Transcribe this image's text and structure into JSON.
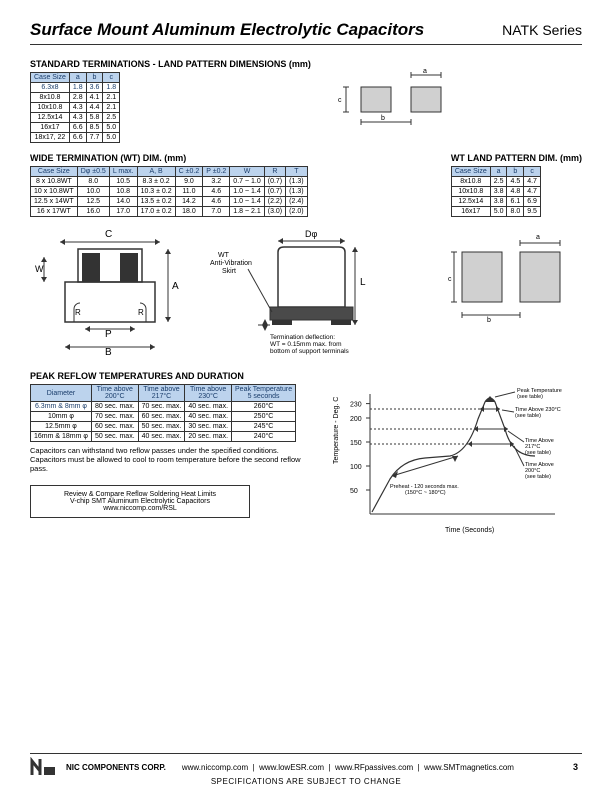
{
  "header": {
    "title": "Surface Mount Aluminum Electrolytic Capacitors",
    "series": "NATK Series"
  },
  "std_term": {
    "heading": "STANDARD TERMINATIONS - LAND PATTERN DIMENSIONS (mm)",
    "cols": [
      "Case Size",
      "a",
      "b",
      "c"
    ],
    "rows": [
      [
        "6.3x8",
        "1.8",
        "3.6",
        "1.8"
      ],
      [
        "8x10.8",
        "2.8",
        "4.1",
        "2.1"
      ],
      [
        "10x10.8",
        "4.3",
        "4.4",
        "2.1"
      ],
      [
        "12.5x14",
        "4.3",
        "5.8",
        "2.5"
      ],
      [
        "16x17",
        "6.6",
        "8.5",
        "5.0"
      ],
      [
        "18x17, 22",
        "6.6",
        "7.7",
        "5.0"
      ]
    ]
  },
  "wt_dim": {
    "heading": "WIDE TERMINATION (WT) DIM. (mm)",
    "cols": [
      "Case Size",
      "Dφ ±0.5",
      "L max.",
      "A, B",
      "C ±0.2",
      "P ±0.2",
      "W",
      "R",
      "T"
    ],
    "rows": [
      [
        "8 x 10.8WT",
        "8.0",
        "10.5",
        "8.3 ± 0.2",
        "9.0",
        "3.2",
        "0.7 ~ 1.0",
        "(0.7)",
        "(1.3)"
      ],
      [
        "10 x 10.8WT",
        "10.0",
        "10.8",
        "10.3 ± 0.2",
        "11.0",
        "4.6",
        "1.0 ~ 1.4",
        "(0.7)",
        "(1.3)"
      ],
      [
        "12.5 x 14WT",
        "12.5",
        "14.0",
        "13.5 ± 0.2",
        "14.2",
        "4.6",
        "1.0 ~ 1.4",
        "(2.2)",
        "(2.4)"
      ],
      [
        "16 x 17WT",
        "16.0",
        "17.0",
        "17.0 ± 0.2",
        "18.0",
        "7.0",
        "1.8 ~ 2.1",
        "(3.0)",
        "(2.0)"
      ]
    ]
  },
  "wt_land": {
    "heading": "WT LAND PATTERN DIM. (mm)",
    "cols": [
      "Case Size",
      "a",
      "b",
      "c"
    ],
    "rows": [
      [
        "8x10.8",
        "2.5",
        "4.5",
        "4.7"
      ],
      [
        "10x10.8",
        "3.8",
        "4.8",
        "4.7"
      ],
      [
        "12.5x14",
        "3.8",
        "6.1",
        "6.9"
      ],
      [
        "16x17",
        "5.0",
        "8.0",
        "9.5"
      ]
    ]
  },
  "mech_labels": {
    "wt_skirt": "WT\nAnti-Vibration\nSkirt",
    "term_defl": "Termination deflection:\nWT = 0.15mm max. from\nbottom of support terminals"
  },
  "reflow": {
    "heading": "PEAK REFLOW TEMPERATURES AND DURATION",
    "cols": [
      "Diameter",
      "Time above\n200°C",
      "Time above\n217°C",
      "Time above\n230°C",
      "Peak Temperature\n5 seconds"
    ],
    "rows": [
      [
        "6.3mm & 8mm φ",
        "80 sec. max.",
        "70 sec. max.",
        "40 sec. max.",
        "260°C"
      ],
      [
        "10mm φ",
        "70 sec. max.",
        "60 sec. max.",
        "40 sec. max.",
        "250°C"
      ],
      [
        "12.5mm φ",
        "60 sec. max.",
        "50 sec. max.",
        "30 sec. max.",
        "245°C"
      ],
      [
        "16mm & 18mm φ",
        "50 sec. max.",
        "40 sec. max.",
        "20 sec. max.",
        "240°C"
      ]
    ],
    "note": "Capacitors can withstand two reflow passes under the specified conditions. Capacitors must be allowed to cool to room temperature before the second reflow pass.",
    "review": "Review & Compare Reflow Soldering Heat Limits\nV-chip SMT Aluminum Electrolytic Capacitors\nwww.niccomp.com/RSL"
  },
  "chart": {
    "ylabel": "Temperature - Deg. C",
    "xlabel": "Time (Seconds)",
    "yticks": [
      "50",
      "100",
      "150",
      "200",
      "230"
    ],
    "annotations": [
      "Peak Temperature\n(see table)",
      "Time Above 230°C\n(see table)",
      "Time Above\n217°C\n(see table)",
      "Time Above\n200°C\n(see table)",
      "Preheat - 120 seconds max.\n(150°C ~ 180°C)"
    ]
  },
  "footer": {
    "corp": "NIC COMPONENTS CORP.",
    "links": [
      "www.niccomp.com",
      "www.lowESR.com",
      "www.RFpassives.com",
      "www.SMTmagnetics.com"
    ],
    "spec": "SPECIFICATIONS ARE SUBJECT TO CHANGE",
    "page": "3"
  }
}
